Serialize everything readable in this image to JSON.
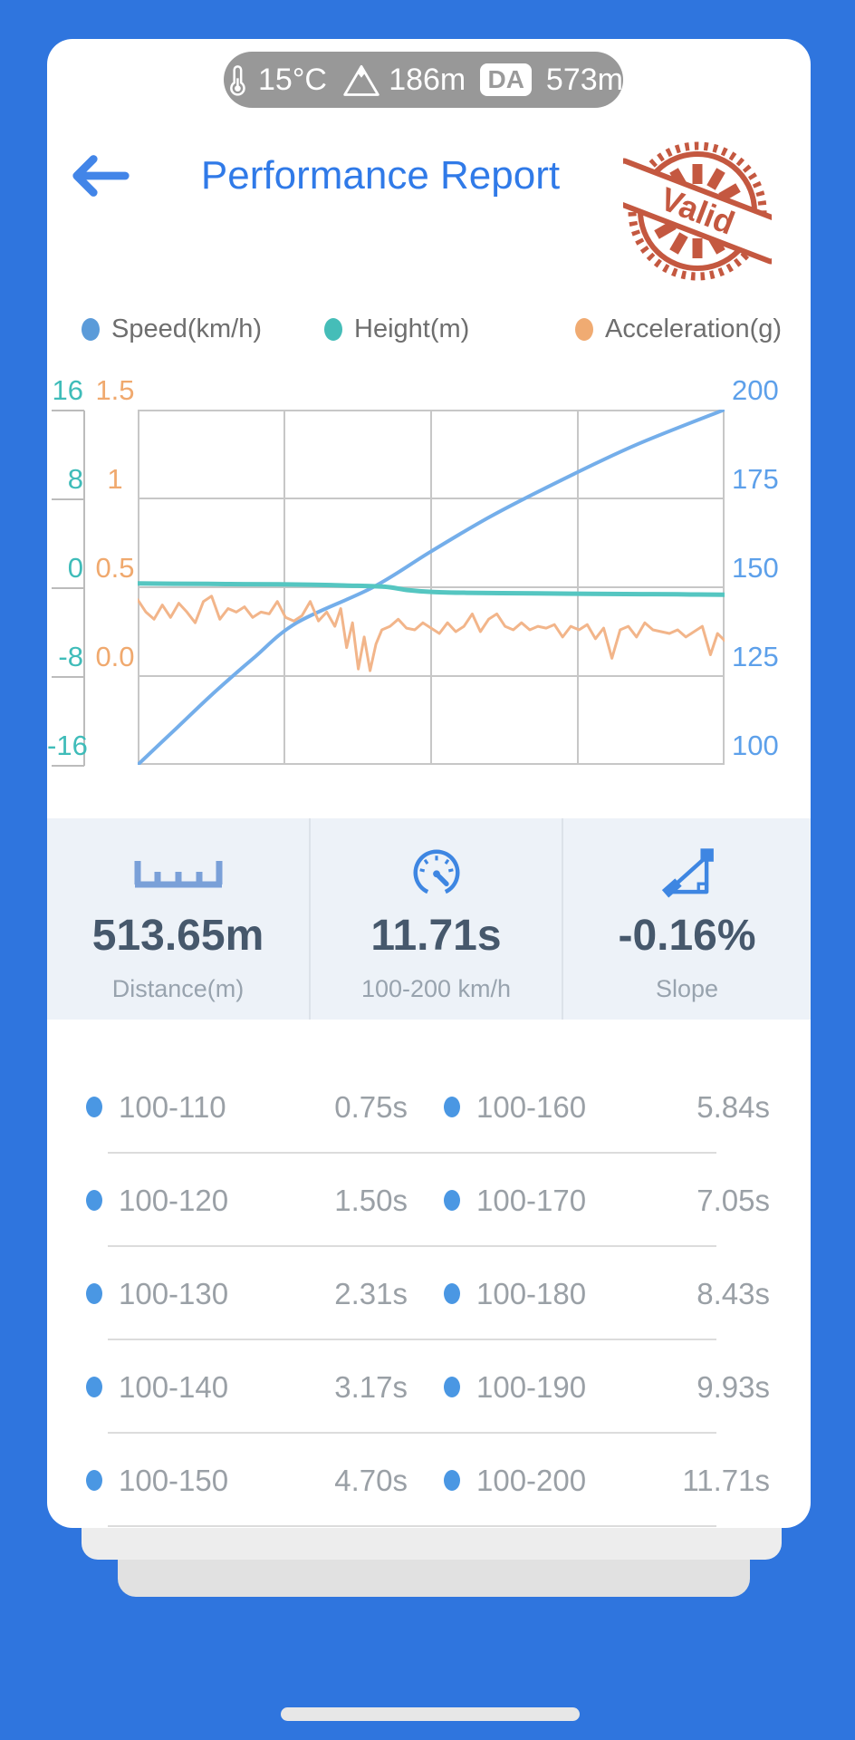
{
  "app": {
    "background_color": "#2f75de",
    "accent_blue": "#307ae8"
  },
  "status_pill": {
    "temperature": "15°C",
    "altitude": "186m",
    "da_label": "DA",
    "da_value": "573m"
  },
  "header": {
    "title": "Performance Report",
    "stamp_text": "Valid",
    "stamp_color": "#c04c32"
  },
  "legend": {
    "items": [
      {
        "label": "Speed(km/h)",
        "color": "#5b9bd9"
      },
      {
        "label": "Height(m)",
        "color": "#45bdb8"
      },
      {
        "label": "Acceleration(g)",
        "color": "#f0ab72"
      }
    ]
  },
  "chart_data": {
    "type": "line",
    "grid": true,
    "x_axis": {
      "label": "",
      "range": [
        0,
        1
      ],
      "divisions": 4
    },
    "axes": {
      "height_left": {
        "label": "Height(m)",
        "color": "#3fbcb9",
        "ticks": [
          "16",
          "8",
          "0",
          "-8",
          "-16"
        ],
        "range": [
          -16,
          16
        ]
      },
      "accel_left": {
        "label": "Acceleration(g)",
        "color": "#f0a96e",
        "ticks": [
          "1.5",
          "1",
          "0.5",
          "0.0"
        ],
        "range": [
          -0.5,
          1.5
        ]
      },
      "speed_right": {
        "label": "Speed(km/h)",
        "color": "#5da0ea",
        "ticks": [
          "200",
          "175",
          "150",
          "125",
          "100"
        ],
        "range": [
          100,
          200
        ]
      }
    },
    "series": [
      {
        "name": "Speed(km/h)",
        "axis": "speed_right",
        "color": "#74aeea",
        "width": 4,
        "smooth": true,
        "points": [
          [
            0,
            100
          ],
          [
            0.064,
            110
          ],
          [
            0.128,
            120
          ],
          [
            0.197,
            130
          ],
          [
            0.271,
            140
          ],
          [
            0.401,
            150
          ],
          [
            0.499,
            160
          ],
          [
            0.602,
            170
          ],
          [
            0.72,
            180
          ],
          [
            0.848,
            190
          ],
          [
            1,
            200
          ]
        ]
      },
      {
        "name": "Height(m)",
        "axis": "height_left",
        "color": "#55c6c1",
        "width": 5,
        "smooth": true,
        "points": [
          [
            0,
            0.35
          ],
          [
            0.06,
            0.32
          ],
          [
            0.12,
            0.3
          ],
          [
            0.18,
            0.28
          ],
          [
            0.24,
            0.26
          ],
          [
            0.3,
            0.22
          ],
          [
            0.36,
            0.15
          ],
          [
            0.42,
            0.05
          ],
          [
            0.46,
            -0.25
          ],
          [
            0.5,
            -0.42
          ],
          [
            0.56,
            -0.5
          ],
          [
            0.62,
            -0.53
          ],
          [
            0.68,
            -0.55
          ],
          [
            0.74,
            -0.58
          ],
          [
            0.8,
            -0.6
          ],
          [
            0.86,
            -0.62
          ],
          [
            0.92,
            -0.64
          ],
          [
            1,
            -0.68
          ]
        ]
      },
      {
        "name": "Acceleration(g)",
        "axis": "accel_left",
        "color": "#f2b58a",
        "width": 3,
        "smooth": false,
        "points": [
          [
            0,
            0.43
          ],
          [
            0.014,
            0.36
          ],
          [
            0.028,
            0.32
          ],
          [
            0.042,
            0.4
          ],
          [
            0.056,
            0.33
          ],
          [
            0.07,
            0.41
          ],
          [
            0.084,
            0.36
          ],
          [
            0.098,
            0.3
          ],
          [
            0.112,
            0.42
          ],
          [
            0.126,
            0.45
          ],
          [
            0.14,
            0.32
          ],
          [
            0.154,
            0.38
          ],
          [
            0.168,
            0.36
          ],
          [
            0.182,
            0.39
          ],
          [
            0.196,
            0.33
          ],
          [
            0.21,
            0.36
          ],
          [
            0.224,
            0.35
          ],
          [
            0.238,
            0.42
          ],
          [
            0.252,
            0.33
          ],
          [
            0.266,
            0.31
          ],
          [
            0.28,
            0.34
          ],
          [
            0.294,
            0.42
          ],
          [
            0.308,
            0.31
          ],
          [
            0.322,
            0.36
          ],
          [
            0.336,
            0.28
          ],
          [
            0.346,
            0.38
          ],
          [
            0.356,
            0.16
          ],
          [
            0.366,
            0.3
          ],
          [
            0.376,
            0.04
          ],
          [
            0.386,
            0.22
          ],
          [
            0.396,
            0.03
          ],
          [
            0.406,
            0.18
          ],
          [
            0.416,
            0.26
          ],
          [
            0.43,
            0.28
          ],
          [
            0.444,
            0.32
          ],
          [
            0.458,
            0.27
          ],
          [
            0.472,
            0.26
          ],
          [
            0.486,
            0.3
          ],
          [
            0.5,
            0.27
          ],
          [
            0.514,
            0.24
          ],
          [
            0.528,
            0.3
          ],
          [
            0.542,
            0.25
          ],
          [
            0.556,
            0.28
          ],
          [
            0.57,
            0.35
          ],
          [
            0.584,
            0.25
          ],
          [
            0.598,
            0.32
          ],
          [
            0.612,
            0.35
          ],
          [
            0.626,
            0.28
          ],
          [
            0.64,
            0.26
          ],
          [
            0.654,
            0.3
          ],
          [
            0.668,
            0.26
          ],
          [
            0.682,
            0.28
          ],
          [
            0.696,
            0.27
          ],
          [
            0.71,
            0.29
          ],
          [
            0.724,
            0.22
          ],
          [
            0.738,
            0.28
          ],
          [
            0.752,
            0.26
          ],
          [
            0.766,
            0.29
          ],
          [
            0.78,
            0.21
          ],
          [
            0.794,
            0.27
          ],
          [
            0.808,
            0.1
          ],
          [
            0.822,
            0.26
          ],
          [
            0.836,
            0.28
          ],
          [
            0.85,
            0.22
          ],
          [
            0.864,
            0.3
          ],
          [
            0.878,
            0.26
          ],
          [
            0.892,
            0.25
          ],
          [
            0.906,
            0.24
          ],
          [
            0.92,
            0.26
          ],
          [
            0.934,
            0.22
          ],
          [
            0.948,
            0.25
          ],
          [
            0.962,
            0.28
          ],
          [
            0.976,
            0.12
          ],
          [
            0.988,
            0.24
          ],
          [
            1,
            0.2
          ]
        ]
      }
    ]
  },
  "stats": {
    "items": [
      {
        "icon": "ruler-icon",
        "value": "513.65m",
        "label": "Distance(m)"
      },
      {
        "icon": "speedometer-icon",
        "value": "11.71s",
        "label": "100-200 km/h"
      },
      {
        "icon": "slope-icon",
        "value": "-0.16%",
        "label": "Slope"
      }
    ]
  },
  "splits": {
    "rows": [
      {
        "left_range": "100-110",
        "left_time": "0.75s",
        "right_range": "100-160",
        "right_time": "5.84s"
      },
      {
        "left_range": "100-120",
        "left_time": "1.50s",
        "right_range": "100-170",
        "right_time": "7.05s"
      },
      {
        "left_range": "100-130",
        "left_time": "2.31s",
        "right_range": "100-180",
        "right_time": "8.43s"
      },
      {
        "left_range": "100-140",
        "left_time": "3.17s",
        "right_range": "100-190",
        "right_time": "9.93s"
      },
      {
        "left_range": "100-150",
        "left_time": "4.70s",
        "right_range": "100-200",
        "right_time": "11.71s"
      }
    ]
  }
}
